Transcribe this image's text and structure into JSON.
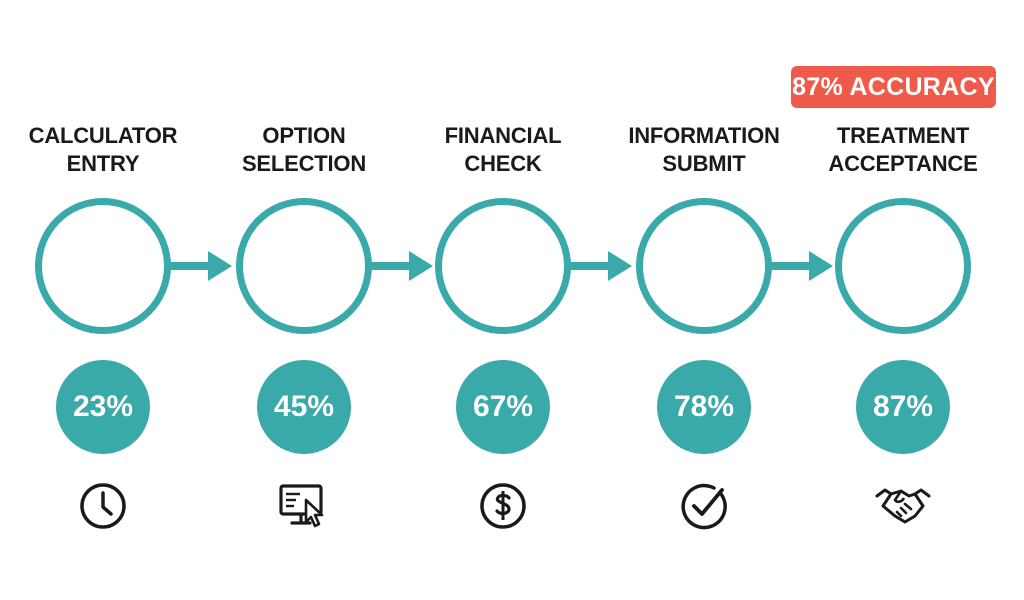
{
  "colors": {
    "teal": "#3aa9a9",
    "badge": "#ef5a4a",
    "text": "#1a1a1a"
  },
  "badge": {
    "text": "87% ACCURACY"
  },
  "steps": [
    {
      "line1": "CALCULATOR",
      "line2": "ENTRY",
      "percent": "23%",
      "icon": "clock-icon"
    },
    {
      "line1": "OPTION",
      "line2": "SELECTION",
      "percent": "45%",
      "icon": "monitor-cursor-icon"
    },
    {
      "line1": "FINANCIAL",
      "line2": "CHECK",
      "percent": "67%",
      "icon": "dollar-icon"
    },
    {
      "line1": "INFORMATION",
      "line2": "SUBMIT",
      "percent": "78%",
      "icon": "checkmark-icon"
    },
    {
      "line1": "TREATMENT",
      "line2": "ACCEPTANCE",
      "percent": "87%",
      "icon": "handshake-icon"
    }
  ]
}
